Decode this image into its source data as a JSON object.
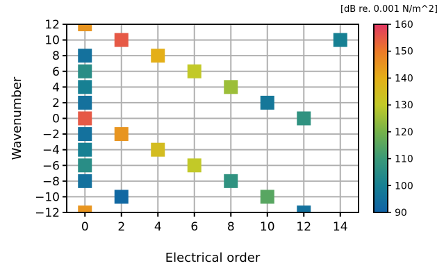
{
  "chart_data": {
    "type": "scatter",
    "xlabel": "Electrical order",
    "ylabel": "Wavenumber",
    "xlim": [
      -1,
      15
    ],
    "ylim": [
      -12,
      12
    ],
    "xticks": [
      0,
      2,
      4,
      6,
      8,
      10,
      12,
      14
    ],
    "yticks": [
      12,
      10,
      8,
      6,
      4,
      2,
      0,
      -2,
      -4,
      -6,
      -8,
      -10,
      -12
    ],
    "ytick_labels": [
      "12",
      "10",
      "8",
      "6",
      "4",
      "2",
      "0",
      "−2",
      "−4",
      "−6",
      "−8",
      "−10",
      "−12"
    ],
    "grid": true,
    "marker": "square",
    "points": [
      {
        "x": 0,
        "y": 12,
        "value": 145
      },
      {
        "x": 0,
        "y": 8,
        "value": 95
      },
      {
        "x": 0,
        "y": 6,
        "value": 105
      },
      {
        "x": 0,
        "y": 4,
        "value": 100
      },
      {
        "x": 0,
        "y": 2,
        "value": 95
      },
      {
        "x": 0,
        "y": 0,
        "value": 155
      },
      {
        "x": 0,
        "y": -2,
        "value": 95
      },
      {
        "x": 0,
        "y": -4,
        "value": 100
      },
      {
        "x": 0,
        "y": -6,
        "value": 105
      },
      {
        "x": 0,
        "y": -8,
        "value": 95
      },
      {
        "x": 0,
        "y": -12,
        "value": 145
      },
      {
        "x": 2,
        "y": 10,
        "value": 155
      },
      {
        "x": 2,
        "y": -2,
        "value": 145
      },
      {
        "x": 2,
        "y": -10,
        "value": 92
      },
      {
        "x": 4,
        "y": 8,
        "value": 140
      },
      {
        "x": 4,
        "y": -4,
        "value": 135
      },
      {
        "x": 6,
        "y": 6,
        "value": 130
      },
      {
        "x": 6,
        "y": -6,
        "value": 130
      },
      {
        "x": 8,
        "y": 4,
        "value": 125
      },
      {
        "x": 8,
        "y": -8,
        "value": 107
      },
      {
        "x": 10,
        "y": 2,
        "value": 97
      },
      {
        "x": 10,
        "y": -10,
        "value": 115
      },
      {
        "x": 12,
        "y": 0,
        "value": 107
      },
      {
        "x": 12,
        "y": -12,
        "value": 95
      },
      {
        "x": 14,
        "y": 10,
        "value": 100
      }
    ],
    "colorbar": {
      "min": 90,
      "max": 160,
      "ticks": [
        90,
        100,
        110,
        120,
        130,
        140,
        150,
        160
      ],
      "unit_label": "[dB re. 0.001 N/m^2]",
      "colormap_stops": [
        {
          "v": 90,
          "color": "#1062a6"
        },
        {
          "v": 100,
          "color": "#178093"
        },
        {
          "v": 110,
          "color": "#3a9978"
        },
        {
          "v": 120,
          "color": "#75b24a"
        },
        {
          "v": 130,
          "color": "#c2c928"
        },
        {
          "v": 140,
          "color": "#e4af18"
        },
        {
          "v": 150,
          "color": "#ec7a28"
        },
        {
          "v": 160,
          "color": "#e03763"
        }
      ]
    }
  }
}
